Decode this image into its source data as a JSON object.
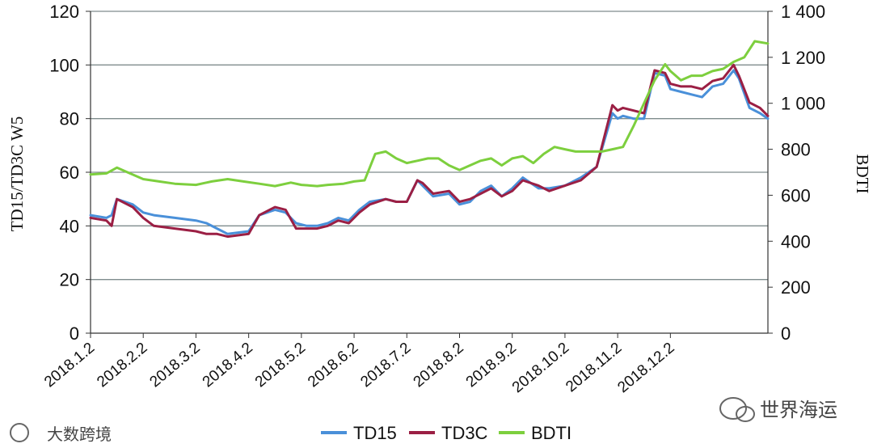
{
  "chart_data": {
    "type": "line",
    "ylabel": "TD15/TD3C W5",
    "y2label": "BDTI",
    "ylim": [
      0,
      120
    ],
    "y2lim": [
      0,
      1400
    ],
    "yticks": [
      "0",
      "20",
      "40",
      "60",
      "80",
      "100",
      "120"
    ],
    "y2ticks": [
      "0",
      "200",
      "400",
      "600",
      "800",
      "1 000",
      "1 200",
      "1 400"
    ],
    "xticks": [
      "2018.1.2",
      "2018.2.2",
      "2018.3.2",
      "2018.4.2",
      "2018.5.2",
      "2018.6.2",
      "2018.7.2",
      "2018.8.2",
      "2018.9.2",
      "2018.10.2",
      "2018.11.2",
      "2018.12.2"
    ],
    "grid": true,
    "legend_position": "bottom",
    "series": [
      {
        "name": "TD15",
        "axis": "left",
        "color": "#4a90d9",
        "x": [
          0,
          0.3,
          0.4,
          0.5,
          0.8,
          1.0,
          1.2,
          1.6,
          2.0,
          2.2,
          2.4,
          2.6,
          3.0,
          3.2,
          3.5,
          3.7,
          3.9,
          4.1,
          4.3,
          4.5,
          4.7,
          4.9,
          5.1,
          5.3,
          5.6,
          5.8,
          6.0,
          6.2,
          6.3,
          6.5,
          6.8,
          7.0,
          7.2,
          7.4,
          7.6,
          7.8,
          8.0,
          8.2,
          8.5,
          8.7,
          9.0,
          9.3,
          9.6,
          9.9,
          10.0,
          10.1,
          10.3,
          10.5,
          10.7,
          10.9,
          11.0,
          11.2,
          11.4,
          11.6,
          11.8,
          12.0,
          12.2,
          12.3,
          12.5,
          12.7,
          12.85
        ],
        "values": [
          44,
          43,
          44,
          50,
          48,
          45,
          44,
          43,
          42,
          41,
          39,
          37,
          38,
          44,
          46,
          45,
          41,
          40,
          40,
          41,
          43,
          42,
          46,
          49,
          50,
          49,
          49,
          57,
          55,
          51,
          52,
          48,
          49,
          53,
          55,
          51,
          54,
          58,
          54,
          54,
          55,
          58,
          62,
          82,
          80,
          81,
          80,
          80,
          97,
          96,
          91,
          90,
          89,
          88,
          92,
          93,
          98,
          95,
          84,
          82,
          80
        ]
      },
      {
        "name": "TD3C",
        "axis": "left",
        "color": "#9b1f44",
        "x": [
          0,
          0.3,
          0.4,
          0.5,
          0.8,
          1.0,
          1.2,
          1.6,
          2.0,
          2.2,
          2.4,
          2.6,
          3.0,
          3.2,
          3.5,
          3.7,
          3.9,
          4.1,
          4.3,
          4.5,
          4.7,
          4.9,
          5.1,
          5.3,
          5.6,
          5.8,
          6.0,
          6.2,
          6.3,
          6.5,
          6.8,
          7.0,
          7.2,
          7.4,
          7.6,
          7.8,
          8.0,
          8.2,
          8.5,
          8.7,
          9.0,
          9.3,
          9.6,
          9.9,
          10.0,
          10.1,
          10.3,
          10.5,
          10.7,
          10.9,
          11.0,
          11.2,
          11.4,
          11.6,
          11.8,
          12.0,
          12.2,
          12.3,
          12.5,
          12.7,
          12.85
        ],
        "values": [
          43,
          42,
          40,
          50,
          47,
          43,
          40,
          39,
          38,
          37,
          37,
          36,
          37,
          44,
          47,
          46,
          39,
          39,
          39,
          40,
          42,
          41,
          45,
          48,
          50,
          49,
          49,
          57,
          56,
          52,
          53,
          49,
          50,
          52,
          54,
          51,
          53,
          57,
          55,
          53,
          55,
          57,
          62,
          85,
          83,
          84,
          83,
          82,
          98,
          97,
          93,
          92,
          92,
          91,
          94,
          95,
          100,
          96,
          86,
          84,
          81
        ]
      },
      {
        "name": "BDTI",
        "axis": "right",
        "color": "#7dcf3e",
        "x": [
          0,
          0.3,
          0.5,
          0.7,
          1.0,
          1.3,
          1.6,
          2.0,
          2.3,
          2.6,
          2.9,
          3.2,
          3.5,
          3.8,
          4.0,
          4.3,
          4.5,
          4.8,
          5.0,
          5.2,
          5.4,
          5.6,
          5.8,
          6.0,
          6.2,
          6.4,
          6.6,
          6.8,
          7.0,
          7.2,
          7.4,
          7.6,
          7.8,
          8.0,
          8.2,
          8.4,
          8.6,
          8.8,
          9.0,
          9.2,
          9.5,
          9.7,
          9.9,
          10.1,
          10.3,
          10.5,
          10.7,
          10.9,
          11.0,
          11.2,
          11.4,
          11.6,
          11.8,
          12.0,
          12.2,
          12.4,
          12.6,
          12.85
        ],
        "values": [
          690,
          695,
          720,
          700,
          670,
          660,
          650,
          645,
          660,
          670,
          660,
          650,
          640,
          655,
          645,
          640,
          645,
          650,
          660,
          665,
          780,
          790,
          760,
          740,
          750,
          760,
          760,
          730,
          710,
          730,
          750,
          760,
          730,
          760,
          770,
          740,
          780,
          810,
          800,
          790,
          790,
          790,
          800,
          810,
          900,
          1000,
          1100,
          1170,
          1140,
          1100,
          1120,
          1120,
          1140,
          1150,
          1180,
          1200,
          1270,
          1260
        ]
      }
    ]
  },
  "watermarks": {
    "left": "大数跨境",
    "right": "世界海运"
  }
}
